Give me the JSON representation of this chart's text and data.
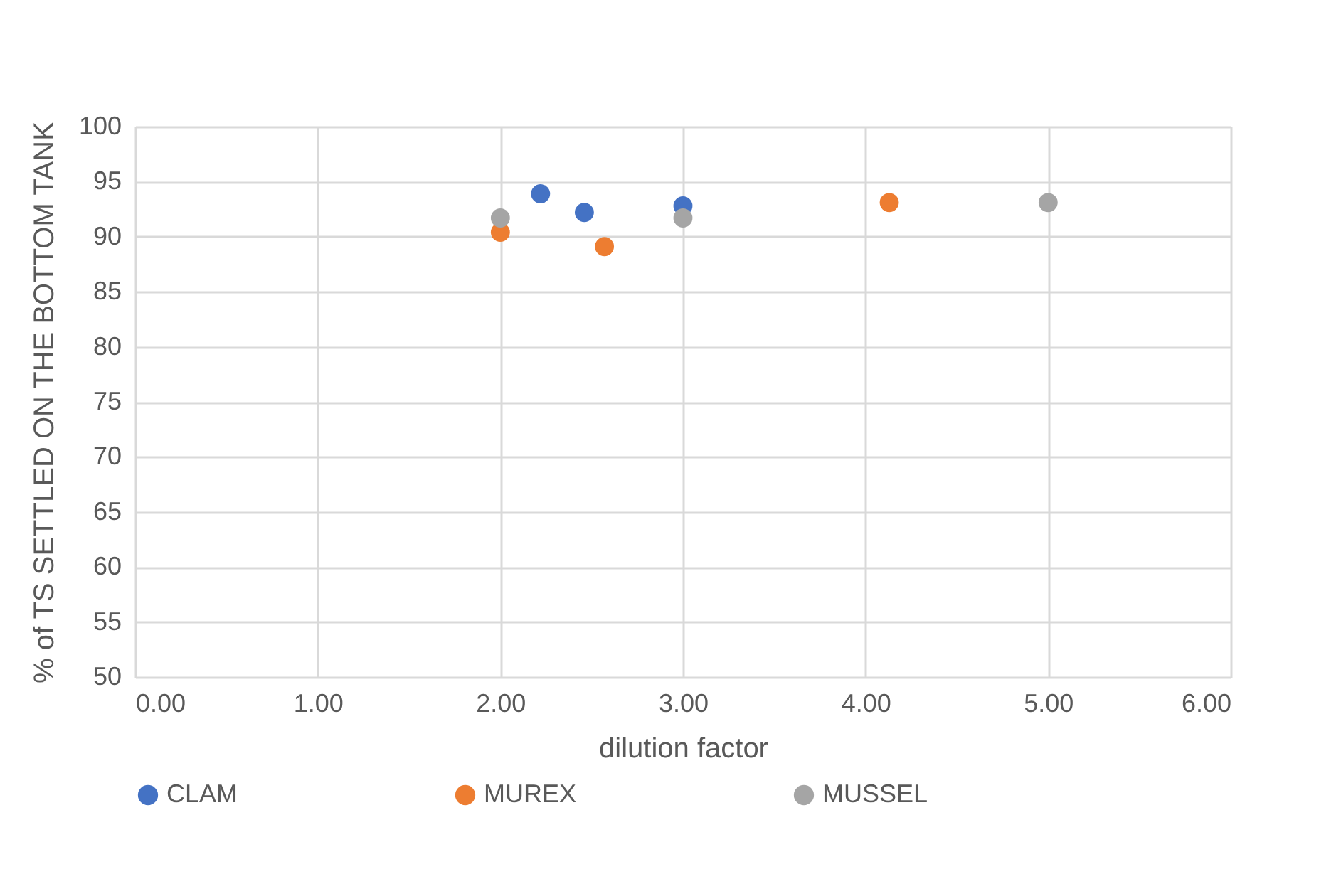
{
  "chart_data": {
    "type": "scatter",
    "xlabel": "dilution factor",
    "ylabel": "% of TS SETTLED ON THE BOTTOM TANK",
    "xlim": [
      0,
      6
    ],
    "xticks": [
      {
        "value": 0,
        "label": "0.00"
      },
      {
        "value": 1,
        "label": "1.00"
      },
      {
        "value": 2,
        "label": "2.00"
      },
      {
        "value": 3,
        "label": "3.00"
      },
      {
        "value": 4,
        "label": "4.00"
      },
      {
        "value": 5,
        "label": "5.00"
      },
      {
        "value": 6,
        "label": "6.00"
      }
    ],
    "ylim": [
      50,
      100
    ],
    "yticks": [
      50,
      55,
      60,
      65,
      70,
      75,
      80,
      85,
      90,
      95,
      100
    ],
    "grid": true,
    "legend": "bottom",
    "marker": "circle",
    "series": [
      {
        "name": "CLAM",
        "color": "#4472c4",
        "x": [
          2.22,
          2.46,
          3.0
        ],
        "values": [
          93.9,
          92.2,
          92.8
        ]
      },
      {
        "name": "MUREX",
        "color": "#ed7d31",
        "x": [
          2.0,
          2.57,
          4.13
        ],
        "values": [
          90.4,
          89.1,
          93.1
        ]
      },
      {
        "name": "MUSSEL",
        "color": "#a5a5a5",
        "x": [
          2.0,
          3.0,
          5.0
        ],
        "values": [
          91.7,
          91.7,
          93.1
        ]
      }
    ]
  }
}
